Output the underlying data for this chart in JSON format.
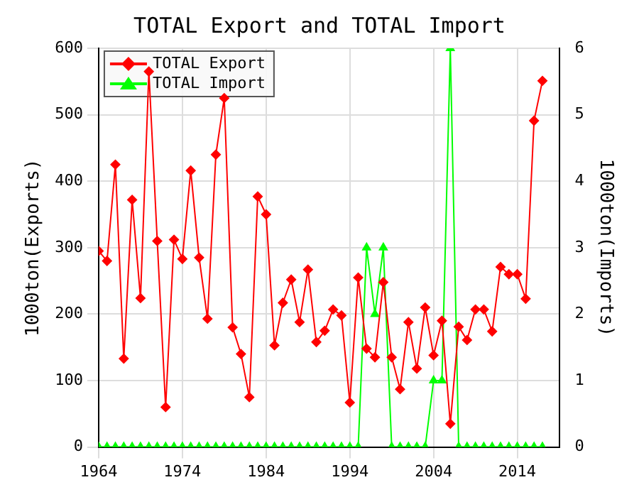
{
  "chart_data": {
    "type": "line",
    "title": "TOTAL Export and TOTAL Import",
    "ylabel": "1000ton(Exports)",
    "y2label": "1000ton(Imports)",
    "x": [
      1964,
      1965,
      1966,
      1967,
      1968,
      1969,
      1970,
      1971,
      1972,
      1973,
      1974,
      1975,
      1976,
      1977,
      1978,
      1979,
      1980,
      1981,
      1982,
      1983,
      1984,
      1985,
      1986,
      1987,
      1988,
      1989,
      1990,
      1991,
      1992,
      1993,
      1994,
      1995,
      1996,
      1997,
      1998,
      1999,
      2000,
      2001,
      2002,
      2003,
      2004,
      2005,
      2006,
      2007,
      2008,
      2009,
      2010,
      2011,
      2012,
      2013,
      2014,
      2015,
      2016,
      2017
    ],
    "series": [
      {
        "name": "TOTAL Export",
        "color": "#ff0000",
        "marker": "diamond",
        "values": [
          295,
          280,
          425,
          133,
          372,
          224,
          565,
          310,
          60,
          312,
          283,
          416,
          285,
          193,
          440,
          525,
          180,
          140,
          75,
          377,
          350,
          153,
          217,
          252,
          188,
          267,
          158,
          175,
          207,
          198,
          67,
          255,
          148,
          135,
          248,
          135,
          87,
          188,
          118,
          210,
          138,
          190,
          35,
          181,
          161,
          207,
          207,
          174,
          271,
          260,
          260,
          223,
          491,
          551
        ]
      },
      {
        "name": "TOTAL Import",
        "color": "#00ff00",
        "marker": "triangle",
        "axis": "y2",
        "values": [
          0,
          0,
          0,
          0,
          0,
          0,
          0,
          0,
          0,
          0,
          0,
          0,
          0,
          0,
          0,
          0,
          0,
          0,
          0,
          0,
          0,
          0,
          0,
          0,
          0,
          0,
          0,
          0,
          0,
          0,
          0,
          0,
          3,
          2,
          3,
          0,
          0,
          0,
          0,
          0,
          1,
          1,
          6,
          0,
          0,
          0,
          0,
          0,
          0,
          0,
          0,
          0,
          0,
          0
        ]
      }
    ],
    "xlim": [
      1964,
      2019
    ],
    "xticks": [
      1964,
      1974,
      1984,
      1994,
      2004,
      2014
    ],
    "ylim": [
      0,
      600
    ],
    "yticks": [
      0,
      100,
      200,
      300,
      400,
      500,
      600
    ],
    "y2lim": [
      0,
      6
    ],
    "y2ticks": [
      0,
      1,
      2,
      3,
      4,
      5,
      6
    ],
    "grid": true,
    "legend": "top left"
  }
}
